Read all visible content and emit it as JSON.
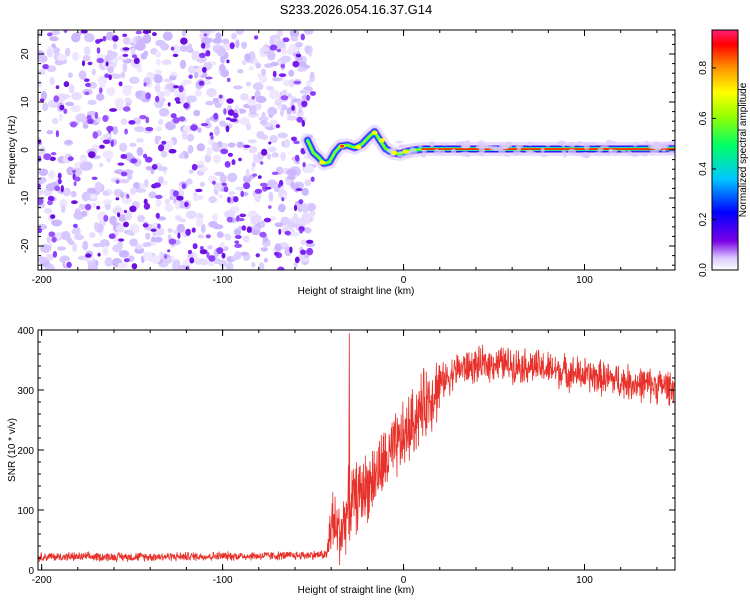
{
  "title": "S233.2026.054.16.37.G14",
  "chart_data": [
    {
      "type": "heatmap",
      "title": "S233.2026.054.16.37.G14",
      "xlabel": "Height of straight line (km)",
      "ylabel": "Frequency (Hz)",
      "xlim": [
        -202,
        150
      ],
      "ylim": [
        -25,
        25
      ],
      "xticks": [
        -200,
        -100,
        0,
        100
      ],
      "xtick_labels": [
        "-200",
        "-100",
        "0",
        "100"
      ],
      "yticks": [
        20,
        10,
        0,
        -10,
        -20
      ],
      "ytick_labels": [
        "20",
        "10",
        "0",
        "-10",
        "-20"
      ],
      "noise_region": {
        "x_from": -202,
        "x_to": -50
      },
      "ridge": [
        {
          "x": -53,
          "f": 2.0
        },
        {
          "x": -50,
          "f": -0.5
        },
        {
          "x": -47,
          "f": -1.5
        },
        {
          "x": -44,
          "f": -2.8
        },
        {
          "x": -41,
          "f": -2.5
        },
        {
          "x": -38,
          "f": -0.5
        },
        {
          "x": -35,
          "f": 0.8
        },
        {
          "x": -31,
          "f": 1.0
        },
        {
          "x": -27,
          "f": 0.5
        },
        {
          "x": -23,
          "f": 1.2
        },
        {
          "x": -19,
          "f": 2.8
        },
        {
          "x": -16,
          "f": 3.8
        },
        {
          "x": -13,
          "f": 2.0
        },
        {
          "x": -10,
          "f": 0.3
        },
        {
          "x": -6,
          "f": -0.6
        },
        {
          "x": -2,
          "f": -0.8
        },
        {
          "x": 2,
          "f": -0.3
        },
        {
          "x": 6,
          "f": 0.0
        },
        {
          "x": 12,
          "f": 0.2
        },
        {
          "x": 30,
          "f": 0.2
        },
        {
          "x": 60,
          "f": 0.2
        },
        {
          "x": 90,
          "f": 0.2
        },
        {
          "x": 120,
          "f": 0.2
        },
        {
          "x": 150,
          "f": 0.3
        }
      ],
      "colorbar": {
        "label": "Normalized spectral amplitude",
        "ticks": [
          0.0,
          0.2,
          0.4,
          0.6,
          0.8
        ],
        "tick_labels": [
          "0.0",
          "0.2",
          "0.4",
          "0.6",
          "0.8"
        ],
        "range": [
          0,
          0.95
        ]
      }
    },
    {
      "type": "line",
      "xlabel": "Height of straight line (km)",
      "ylabel": "SNR (10 * v/v)",
      "xlim": [
        -202,
        150
      ],
      "ylim": [
        0,
        400
      ],
      "xticks": [
        -200,
        -100,
        0,
        100
      ],
      "xtick_labels": [
        "-200",
        "-100",
        "0",
        "100"
      ],
      "yticks": [
        0,
        100,
        200,
        300,
        400
      ],
      "ytick_labels": [
        "0",
        "100",
        "200",
        "300",
        "400"
      ],
      "color": "#e8312a",
      "series": [
        {
          "name": "SNR",
          "trend": [
            {
              "x": -202,
              "y": 22
            },
            {
              "x": -150,
              "y": 22
            },
            {
              "x": -100,
              "y": 23
            },
            {
              "x": -60,
              "y": 24
            },
            {
              "x": -42,
              "y": 26
            },
            {
              "x": -40,
              "y": 80
            },
            {
              "x": -35,
              "y": 60
            },
            {
              "x": -30,
              "y": 110
            },
            {
              "x": -20,
              "y": 140
            },
            {
              "x": -10,
              "y": 180
            },
            {
              "x": 0,
              "y": 220
            },
            {
              "x": 10,
              "y": 270
            },
            {
              "x": 20,
              "y": 310
            },
            {
              "x": 30,
              "y": 335
            },
            {
              "x": 50,
              "y": 345
            },
            {
              "x": 70,
              "y": 340
            },
            {
              "x": 90,
              "y": 330
            },
            {
              "x": 110,
              "y": 320
            },
            {
              "x": 130,
              "y": 310
            },
            {
              "x": 150,
              "y": 305
            }
          ],
          "spike": {
            "x": -30,
            "y": 395
          }
        }
      ]
    }
  ]
}
